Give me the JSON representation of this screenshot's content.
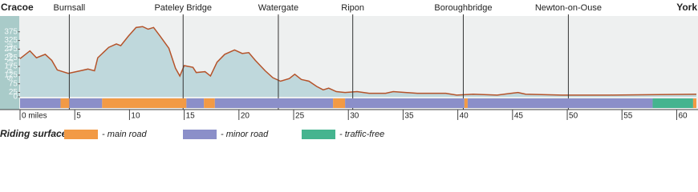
{
  "chart_data": {
    "type": "area",
    "y_label": "metres",
    "x_unit_note": null,
    "line_color": "#b5532a",
    "fill_color": "#bfd8dc",
    "towns": [
      {
        "name": "Cracoe",
        "mile": 0
      },
      {
        "name": "Burnsall",
        "mile": 4.5
      },
      {
        "name": "Pateley Bridge",
        "mile": 14.9
      },
      {
        "name": "Watergate",
        "mile": 23.6
      },
      {
        "name": "Ripon",
        "mile": 30.4
      },
      {
        "name": "Boroughbridge",
        "mile": 40.5
      },
      {
        "name": "Newton-on-Ouse",
        "mile": 50.1
      },
      {
        "name": "York",
        "mile": 61.8
      }
    ],
    "x": [
      0,
      0.9,
      1.5,
      2.3,
      2.9,
      3.4,
      4.4,
      5.5,
      6.2,
      6.8,
      7.1,
      8.1,
      8.8,
      9.2,
      9.9,
      10.6,
      11.2,
      11.7,
      12.2,
      12.8,
      13.6,
      14.2,
      14.6,
      15.0,
      15.8,
      16.1,
      16.9,
      17.4,
      18.0,
      18.7,
      19.6,
      20.3,
      20.9,
      21.5,
      22.4,
      23.1,
      23.8,
      24.6,
      25.1,
      25.7,
      26.4,
      27.1,
      27.7,
      28.2,
      28.9,
      29.7,
      30.8,
      31.9,
      33.4,
      34.1,
      36.3,
      38.9,
      39.9,
      41.4,
      43.6,
      45.5,
      46.2,
      49.5,
      53.9,
      61.8
    ],
    "values": [
      220,
      265,
      225,
      245,
      210,
      155,
      135,
      150,
      160,
      150,
      225,
      285,
      305,
      295,
      350,
      400,
      405,
      390,
      400,
      350,
      280,
      165,
      120,
      180,
      170,
      140,
      145,
      120,
      200,
      245,
      270,
      250,
      255,
      210,
      150,
      110,
      90,
      105,
      130,
      100,
      90,
      60,
      40,
      50,
      30,
      25,
      30,
      20,
      20,
      30,
      20,
      20,
      10,
      15,
      10,
      25,
      15,
      10,
      10,
      15
    ],
    "ylim": [
      0,
      420
    ],
    "yticks": [
      0,
      25,
      75,
      125,
      175,
      225,
      275,
      325,
      375
    ],
    "xlim": [
      0,
      61.8
    ],
    "xticks": [
      {
        "value": 0,
        "label": "0 miles"
      },
      5,
      10,
      15,
      20,
      25,
      30,
      35,
      40,
      45,
      50,
      55,
      60
    ],
    "legend_title": "Riding surface:",
    "surfaces": [
      {
        "name": "- main road",
        "color": "#f29a45"
      },
      {
        "name": "- minor road",
        "color": "#8b8fc9"
      },
      {
        "name": "- traffic-free",
        "color": "#45b48f"
      }
    ],
    "segments": [
      {
        "start": 0,
        "end": 3.7,
        "surface": 1
      },
      {
        "start": 3.7,
        "end": 4.5,
        "surface": 0
      },
      {
        "start": 4.5,
        "end": 7.5,
        "surface": 1
      },
      {
        "start": 7.5,
        "end": 15.2,
        "surface": 0
      },
      {
        "start": 15.2,
        "end": 16.8,
        "surface": 1
      },
      {
        "start": 16.8,
        "end": 17.8,
        "surface": 0
      },
      {
        "start": 17.8,
        "end": 28.6,
        "surface": 1
      },
      {
        "start": 28.6,
        "end": 29.7,
        "surface": 0
      },
      {
        "start": 29.7,
        "end": 40.6,
        "surface": 1
      },
      {
        "start": 40.6,
        "end": 40.9,
        "surface": 0
      },
      {
        "start": 40.9,
        "end": 57.8,
        "surface": 1
      },
      {
        "start": 57.8,
        "end": 61.5,
        "surface": 2
      },
      {
        "start": 61.5,
        "end": 61.8,
        "surface": 0
      }
    ]
  }
}
